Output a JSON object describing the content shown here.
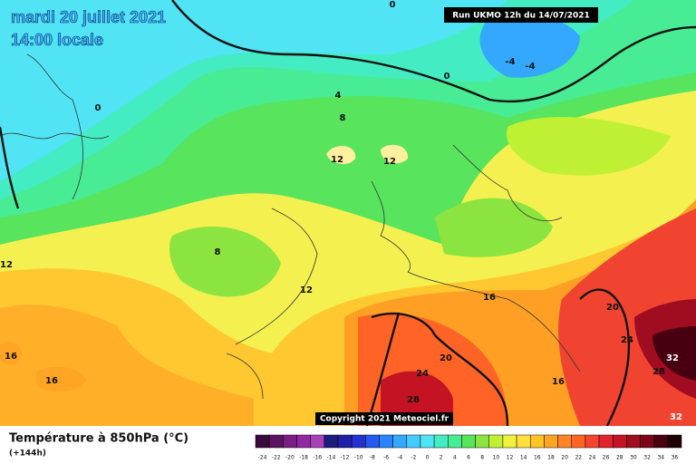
{
  "header": {
    "date": "mardi 20 juillet 2021",
    "time": "14:00 locale",
    "run": "Run UKMO 12h du 14/07/2021"
  },
  "copyright": "Copyright 2021 Meteociel.fr",
  "footer": {
    "title": "Température à 850hPa (°C)",
    "lead": "(+144h)"
  },
  "contour_labels": [
    0,
    4,
    0,
    0,
    -4,
    -4,
    8,
    12,
    12,
    8,
    12,
    12,
    16,
    16,
    16,
    20,
    20,
    24,
    24,
    28,
    32,
    28,
    16,
    32
  ],
  "scale": {
    "labels": [
      -24,
      -22,
      -20,
      -18,
      -16,
      -14,
      -12,
      -10,
      -8,
      -6,
      -4,
      -2,
      0,
      2,
      4,
      6,
      8,
      10,
      12,
      14,
      16,
      18,
      20,
      22,
      24,
      26,
      28,
      30,
      32,
      34,
      36
    ],
    "colors": [
      "#3a0a3a",
      "#5a1460",
      "#7a1e84",
      "#9428a4",
      "#a840b8",
      "#1c1c7c",
      "#2020a8",
      "#2430d0",
      "#2458f0",
      "#2884ff",
      "#34a8ff",
      "#44ccff",
      "#50e4f4",
      "#44ecc4",
      "#48ec94",
      "#58e45c",
      "#8ce440",
      "#c0f034",
      "#f0f040",
      "#ffe03c",
      "#ffc428",
      "#ffa424",
      "#ff8424",
      "#ff6424",
      "#f44430",
      "#e02430",
      "#c41424",
      "#a00c20",
      "#7c0418",
      "#480010",
      "#200008"
    ]
  }
}
